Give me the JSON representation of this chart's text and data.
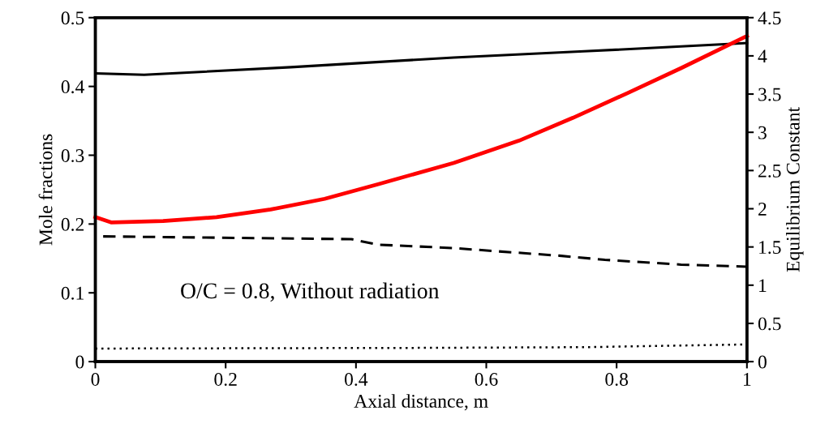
{
  "chart_data": {
    "type": "line",
    "xlabel": "Axial distance, m",
    "ylabel": "Mole fractions",
    "y2label": "Equilibrium Constant",
    "annotations": [
      "O/C = 0.8, Without radiation"
    ],
    "xlim": [
      0,
      1
    ],
    "xticks": [
      0,
      0.2,
      0.4,
      0.6,
      0.8,
      1
    ],
    "ylim": [
      0,
      0.5
    ],
    "yticks": [
      0,
      0.1,
      0.2,
      0.3,
      0.4,
      0.5
    ],
    "y2lim": [
      0,
      4.5
    ],
    "y2ticks": [
      0,
      0.5,
      1,
      1.5,
      2,
      2.5,
      3,
      3.5,
      4,
      4.5
    ],
    "marker": "none",
    "series": [
      {
        "color": "#000000",
        "line_style": "solid",
        "x": [
          0,
          0.075,
          0.3,
          0.55,
          0.75,
          1
        ],
        "values": [
          0.419,
          0.417,
          0.428,
          0.442,
          0.451,
          0.463
        ]
      },
      {
        "color": "#ff0000",
        "line_style": "solid",
        "axis": "y2",
        "x": [
          0,
          0.025,
          0.104,
          0.186,
          0.269,
          0.352,
          0.434,
          0.55,
          0.65,
          0.733,
          0.816,
          0.899,
          1
        ],
        "values": [
          1.89,
          1.82,
          1.84,
          1.89,
          1.99,
          2.13,
          2.32,
          2.6,
          2.89,
          3.19,
          3.51,
          3.84,
          4.26
        ]
      },
      {
        "color": "#000000",
        "line_style": "dashed",
        "x": [
          0.012,
          0.393,
          0.434,
          0.55,
          0.608,
          0.712,
          0.782,
          0.899,
          1
        ],
        "values": [
          0.182,
          0.178,
          0.17,
          0.165,
          0.161,
          0.154,
          0.148,
          0.141,
          0.138
        ]
      },
      {
        "color": "#000000",
        "line_style": "dotted",
        "x": [
          0,
          0.5,
          0.75,
          1
        ],
        "values": [
          0.019,
          0.02,
          0.021,
          0.025
        ]
      }
    ]
  }
}
